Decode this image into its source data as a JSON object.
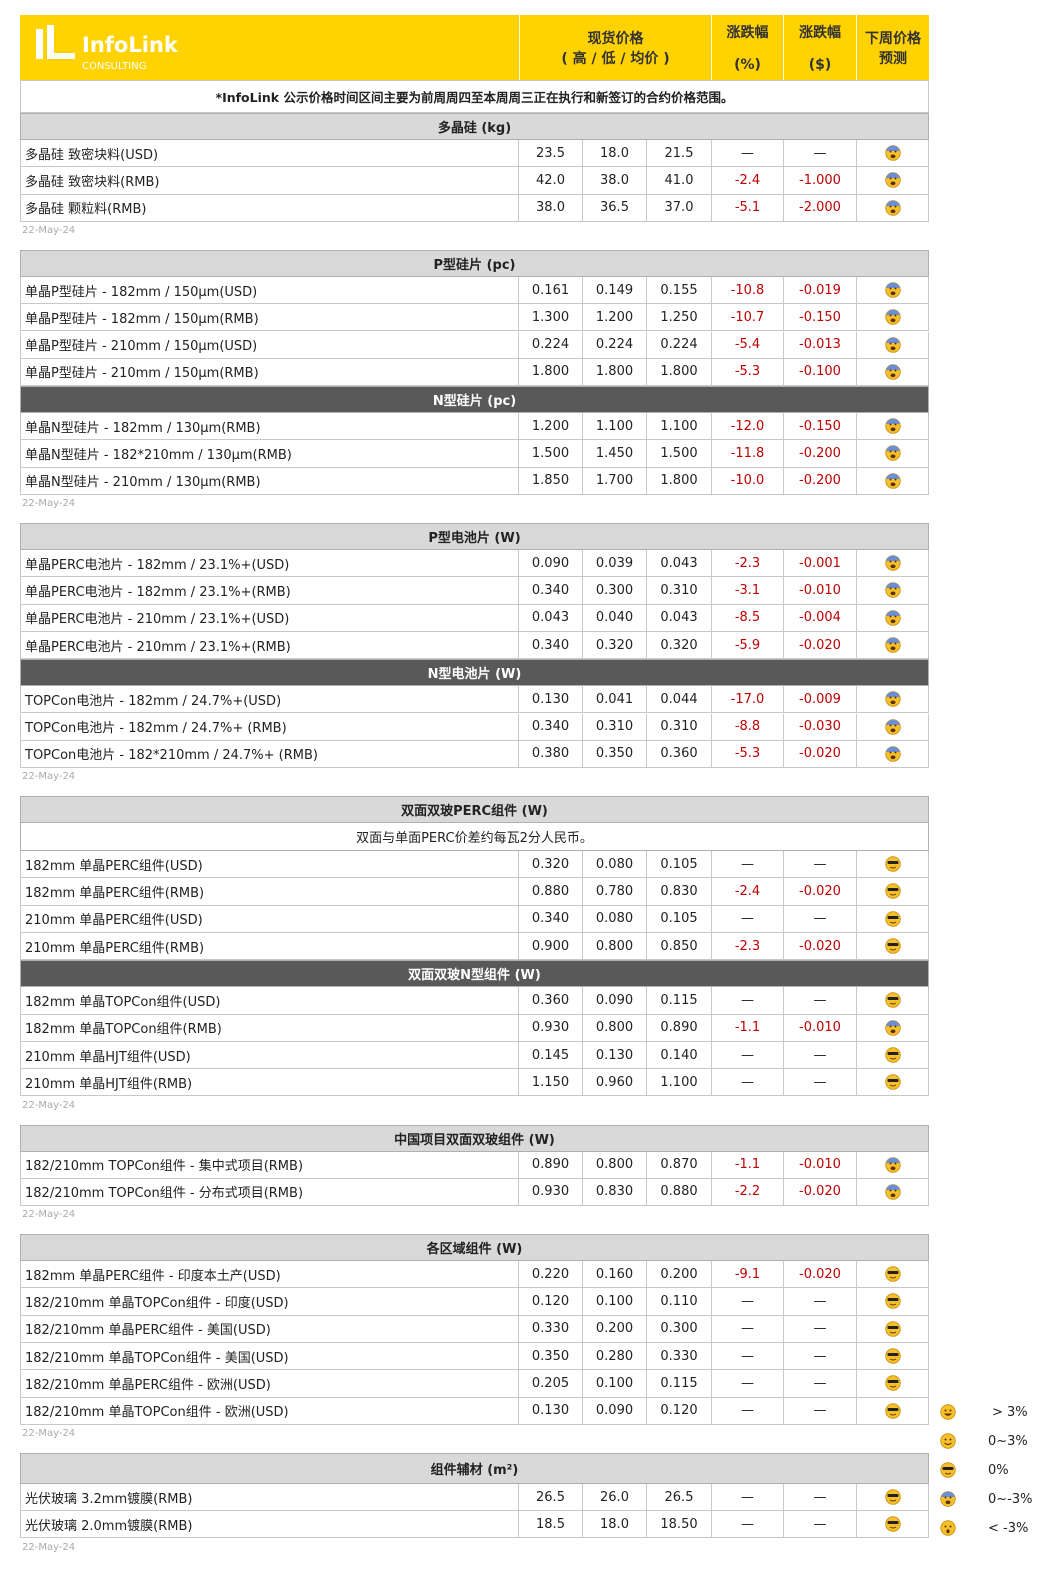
{
  "header": {
    "brand": "InfoLink",
    "brand_sub": "CONSULTING",
    "price": "现货价格",
    "price_sub": "( 高 / 低 / 均价 )",
    "pct": "涨跌幅",
    "pct_sub": "(%)",
    "usd": "涨跌幅",
    "usd_sub": "($)",
    "forecast": "下周价格",
    "forecast_sub": "预测"
  },
  "note": "*InfoLink 公示价格时间区间主要为前周周四至本周周三正在执行和新签订的合约价格范围。",
  "header_color": "#ffd200",
  "section_color": "#d9d9d9",
  "dark_section_color": "#595959",
  "negative_color": "#c00000",
  "blocks": [
    {
      "date": "22-May-24",
      "sections": [
        {
          "title": "多晶硅 (kg)",
          "rows": [
            [
              "多晶硅 致密块料(USD)",
              "23.5",
              "18.0",
              "21.5",
              "—",
              "—",
              "0~-3%"
            ],
            [
              "多晶硅 致密块料(RMB)",
              "42.0",
              "38.0",
              "41.0",
              "-2.4",
              "-1.000",
              "0~-3%"
            ],
            [
              "多晶硅 颗粒料(RMB)",
              "38.0",
              "36.5",
              "37.0",
              "-5.1",
              "-2.000",
              "0~-3%"
            ]
          ]
        }
      ]
    },
    {
      "date": "22-May-24",
      "sections": [
        {
          "title": "P型硅片 (pc)",
          "rows": [
            [
              "单晶P型硅片 - 182mm / 150μm(USD)",
              "0.161",
              "0.149",
              "0.155",
              "-10.8",
              "-0.019",
              "0~-3%"
            ],
            [
              "单晶P型硅片 - 182mm / 150μm(RMB)",
              "1.300",
              "1.200",
              "1.250",
              "-10.7",
              "-0.150",
              "0~-3%"
            ],
            [
              "单晶P型硅片 - 210mm / 150μm(USD)",
              "0.224",
              "0.224",
              "0.224",
              "-5.4",
              "-0.013",
              "0~-3%"
            ],
            [
              "单晶P型硅片 - 210mm / 150μm(RMB)",
              "1.800",
              "1.800",
              "1.800",
              "-5.3",
              "-0.100",
              "0~-3%"
            ]
          ]
        },
        {
          "title": "N型硅片 (pc)",
          "dark": true,
          "rows": [
            [
              "单晶N型硅片 - 182mm / 130μm(RMB)",
              "1.200",
              "1.100",
              "1.100",
              "-12.0",
              "-0.150",
              "0~-3%"
            ],
            [
              "单晶N型硅片 - 182*210mm / 130μm(RMB)",
              "1.500",
              "1.450",
              "1.500",
              "-11.8",
              "-0.200",
              "0~-3%"
            ],
            [
              "单晶N型硅片 - 210mm / 130μm(RMB)",
              "1.850",
              "1.700",
              "1.800",
              "-10.0",
              "-0.200",
              "0~-3%"
            ]
          ]
        }
      ]
    },
    {
      "date": "22-May-24",
      "sections": [
        {
          "title": "P型电池片 (W)",
          "rows": [
            [
              "单晶PERC电池片 - 182mm / 23.1%+(USD)",
              "0.090",
              "0.039",
              "0.043",
              "-2.3",
              "-0.001",
              "0~-3%"
            ],
            [
              "单晶PERC电池片 - 182mm / 23.1%+(RMB)",
              "0.340",
              "0.300",
              "0.310",
              "-3.1",
              "-0.010",
              "0~-3%"
            ],
            [
              "单晶PERC电池片 - 210mm / 23.1%+(USD)",
              "0.043",
              "0.040",
              "0.043",
              "-8.5",
              "-0.004",
              "0~-3%"
            ],
            [
              "单晶PERC电池片 - 210mm / 23.1%+(RMB)",
              "0.340",
              "0.320",
              "0.320",
              "-5.9",
              "-0.020",
              "0~-3%"
            ]
          ]
        },
        {
          "title": "N型电池片 (W)",
          "dark": true,
          "rows": [
            [
              "TOPCon电池片 - 182mm / 24.7%+(USD)",
              "0.130",
              "0.041",
              "0.044",
              "-17.0",
              "-0.009",
              "0~-3%"
            ],
            [
              "TOPCon电池片 - 182mm / 24.7%+ (RMB)",
              "0.340",
              "0.310",
              "0.310",
              "-8.8",
              "-0.030",
              "0~-3%"
            ],
            [
              "TOPCon电池片 - 182*210mm / 24.7%+ (RMB)",
              "0.380",
              "0.350",
              "0.360",
              "-5.3",
              "-0.020",
              "0~-3%"
            ]
          ]
        }
      ]
    },
    {
      "date": "22-May-24",
      "sections": [
        {
          "title": "双面双玻PERC组件 (W)",
          "note": "双面与单面PERC价差约每瓦2分人民币。",
          "rows": [
            [
              "182mm 单晶PERC组件(USD)",
              "0.320",
              "0.080",
              "0.105",
              "—",
              "—",
              "0%"
            ],
            [
              "182mm 单晶PERC组件(RMB)",
              "0.880",
              "0.780",
              "0.830",
              "-2.4",
              "-0.020",
              "0%"
            ],
            [
              "210mm 单晶PERC组件(USD)",
              "0.340",
              "0.080",
              "0.105",
              "—",
              "—",
              "0%"
            ],
            [
              "210mm 单晶PERC组件(RMB)",
              "0.900",
              "0.800",
              "0.850",
              "-2.3",
              "-0.020",
              "0%"
            ]
          ]
        },
        {
          "title": "双面双玻N型组件 (W)",
          "dark": true,
          "rows": [
            [
              "182mm 单晶TOPCon组件(USD)",
              "0.360",
              "0.090",
              "0.115",
              "—",
              "—",
              "0%"
            ],
            [
              "182mm 单晶TOPCon组件(RMB)",
              "0.930",
              "0.800",
              "0.890",
              "-1.1",
              "-0.010",
              "0~-3%"
            ],
            [
              "210mm 单晶HJT组件(USD)",
              "0.145",
              "0.130",
              "0.140",
              "—",
              "—",
              "0%"
            ],
            [
              "210mm 单晶HJT组件(RMB)",
              "1.150",
              "0.960",
              "1.100",
              "—",
              "—",
              "0%"
            ]
          ]
        }
      ]
    },
    {
      "date": "22-May-24",
      "sections": [
        {
          "title": "中国项目双面双玻组件 (W)",
          "rows": [
            [
              "182/210mm TOPCon组件 - 集中式项目(RMB)",
              "0.890",
              "0.800",
              "0.870",
              "-1.1",
              "-0.010",
              "0~-3%"
            ],
            [
              "182/210mm TOPCon组件 - 分布式项目(RMB)",
              "0.930",
              "0.830",
              "0.880",
              "-2.2",
              "-0.020",
              "0~-3%"
            ]
          ]
        }
      ]
    },
    {
      "date": "22-May-24",
      "sections": [
        {
          "title": "各区域组件 (W)",
          "rows": [
            [
              "182mm 单晶PERC组件 - 印度本土产(USD)",
              "0.220",
              "0.160",
              "0.200",
              "-9.1",
              "-0.020",
              "0%"
            ],
            [
              "182/210mm 单晶TOPCon组件 - 印度(USD)",
              "0.120",
              "0.100",
              "0.110",
              "—",
              "—",
              "0%"
            ],
            [
              "182/210mm 单晶PERC组件 - 美国(USD)",
              "0.330",
              "0.200",
              "0.300",
              "—",
              "—",
              "0%"
            ],
            [
              "182/210mm 单晶TOPCon组件 - 美国(USD)",
              "0.350",
              "0.280",
              "0.330",
              "—",
              "—",
              "0%"
            ],
            [
              "182/210mm 单晶PERC组件 - 欧洲(USD)",
              "0.205",
              "0.100",
              "0.115",
              "—",
              "—",
              "0%"
            ],
            [
              "182/210mm 单晶TOPCon组件 - 欧洲(USD)",
              "0.130",
              "0.090",
              "0.120",
              "—",
              "—",
              "0%"
            ]
          ]
        }
      ]
    },
    {
      "date": "22-May-24",
      "sections": [
        {
          "title": "组件辅材 (m²)",
          "rows": [
            [
              "光伏玻璃 3.2mm镀膜(RMB)",
              "26.5",
              "26.0",
              "26.5",
              "—",
              "—",
              "0%"
            ],
            [
              "光伏玻璃 2.0mm镀膜(RMB)",
              "18.5",
              "18.0",
              "18.50",
              "—",
              "—",
              "0%"
            ]
          ]
        }
      ]
    }
  ],
  "legend": [
    "> 3%",
    "0~3%",
    "0%",
    "0~-3%",
    "< -3%"
  ]
}
